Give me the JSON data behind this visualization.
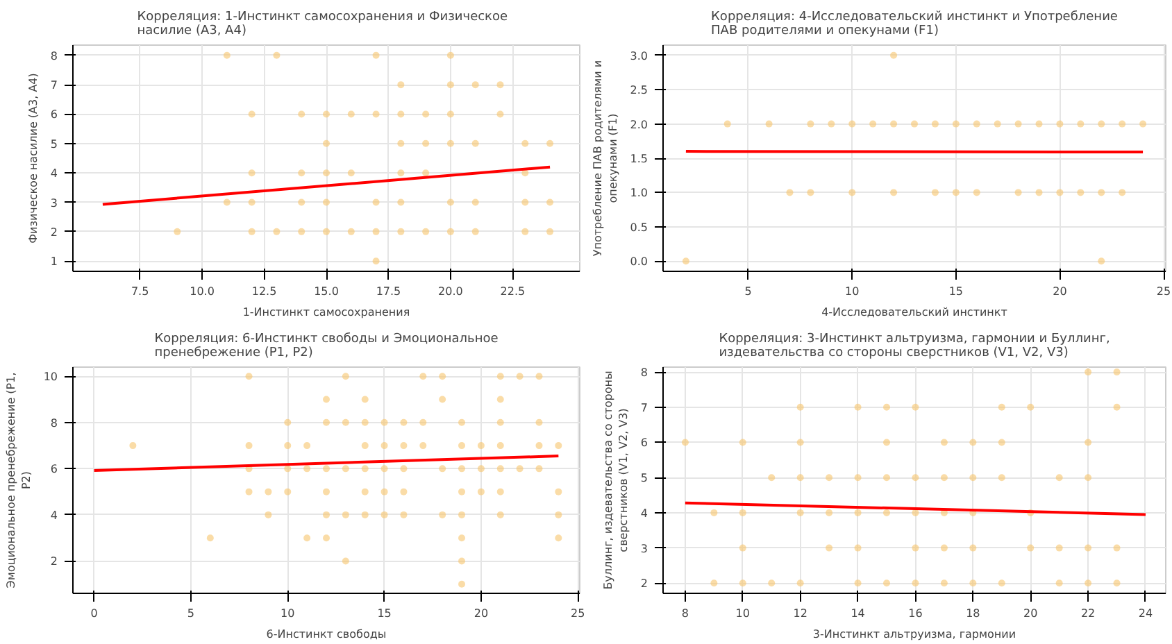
{
  "chart_data": [
    {
      "type": "scatter",
      "title": "Корреляция: 1-Инстинкт самосохранения   и Физическое насилие (А3, А4)",
      "xlabel": "1-Инстинкт самосохранения",
      "ylabel": "Физическое насилие (А3, А4)",
      "xlim": [
        4.8,
        25.2
      ],
      "ylim": [
        0.65,
        8.35
      ],
      "xticks": [
        7.5,
        {
          "value": 10,
          "label": "10.0"
        },
        12.5,
        {
          "value": 15,
          "label": "15.0"
        },
        17.5,
        {
          "value": 20,
          "label": "20.0"
        },
        22.5
      ],
      "yticks": [
        1,
        2,
        3,
        4,
        5,
        6,
        7,
        8
      ],
      "grid": true,
      "series": [
        {
          "marker": "circle",
          "color": "#f7c46c",
          "x": [
            11,
            13,
            17,
            20,
            18,
            20,
            21,
            22,
            12,
            14,
            15,
            16,
            17,
            18,
            19,
            20,
            22,
            15,
            18,
            19,
            20,
            21,
            23,
            24,
            12,
            14,
            15,
            16,
            18,
            19,
            23,
            11,
            12,
            14,
            15,
            17,
            18,
            20,
            21,
            23,
            24,
            9,
            12,
            13,
            14,
            15,
            16,
            17,
            18,
            19,
            20,
            21,
            23,
            24,
            17
          ],
          "values": [
            8,
            8,
            8,
            8,
            7,
            7,
            7,
            7,
            6,
            6,
            6,
            6,
            6,
            6,
            6,
            6,
            6,
            5,
            5,
            5,
            5,
            5,
            5,
            5,
            4,
            4,
            4,
            4,
            4,
            4,
            4,
            3,
            3,
            3,
            3,
            3,
            3,
            3,
            3,
            3,
            3,
            2,
            2,
            2,
            2,
            2,
            2,
            2,
            2,
            2,
            2,
            2,
            2,
            2,
            1
          ]
        },
        {
          "type": "line",
          "color": "#ff0000",
          "x": [
            6,
            24
          ],
          "values": [
            2.93,
            4.2
          ]
        }
      ]
    },
    {
      "type": "scatter",
      "title": "Корреляция: 4-Исследовательский инстинкт и Употребление ПАВ родителями и опекунами (F1)",
      "xlabel": "4-Исследовательский инстинкт",
      "ylabel": "Употребление ПАВ родителями и опекунами (F1)",
      "xlim": [
        0.9,
        25.1
      ],
      "ylim": [
        -0.15,
        3.15
      ],
      "xticks": [
        5,
        10,
        15,
        20,
        25
      ],
      "yticks": [
        {
          "value": 0,
          "label": "0.0"
        },
        0.5,
        {
          "value": 1,
          "label": "1.0"
        },
        1.5,
        {
          "value": 2,
          "label": "2.0"
        },
        2.5,
        {
          "value": 3,
          "label": "3.0"
        }
      ],
      "grid": true,
      "series": [
        {
          "marker": "circle",
          "color": "#f7c46c",
          "x": [
            12,
            4,
            6,
            8,
            9,
            10,
            11,
            12,
            13,
            14,
            15,
            16,
            17,
            18,
            19,
            20,
            21,
            22,
            23,
            24,
            7,
            8,
            10,
            12,
            14,
            15,
            16,
            18,
            19,
            20,
            21,
            22,
            23,
            2,
            22
          ],
          "values": [
            3,
            2,
            2,
            2,
            2,
            2,
            2,
            2,
            2,
            2,
            2,
            2,
            2,
            2,
            2,
            2,
            2,
            2,
            2,
            2,
            1,
            1,
            1,
            1,
            1,
            1,
            1,
            1,
            1,
            1,
            1,
            1,
            1,
            0,
            0
          ]
        },
        {
          "type": "line",
          "color": "#ff0000",
          "x": [
            2,
            24
          ],
          "values": [
            1.6,
            1.59
          ]
        }
      ]
    },
    {
      "type": "scatter",
      "title": "Корреляция: 6-Инстинкт свободы и Эмоциональное пренебрежение (P1, P2)",
      "xlabel": "6-Инстинкт свободы",
      "ylabel": "Эмоциональное пренебрежение (P1, P2)",
      "xlim": [
        -1.1,
        25.1
      ],
      "ylim": [
        0.6,
        10.4
      ],
      "xticks": [
        0,
        5,
        10,
        15,
        20,
        25
      ],
      "yticks": [
        2,
        4,
        6,
        8,
        10
      ],
      "grid": true,
      "series": [
        {
          "marker": "circle",
          "color": "#f7c46c",
          "x": [
            8,
            13,
            17,
            18,
            21,
            22,
            23,
            12,
            14,
            18,
            21,
            10,
            12,
            13,
            14,
            15,
            16,
            17,
            19,
            21,
            23,
            2,
            8,
            10,
            11,
            14,
            15,
            16,
            17,
            19,
            20,
            21,
            23,
            24,
            8,
            10,
            11,
            12,
            13,
            14,
            15,
            16,
            18,
            19,
            20,
            21,
            22,
            23,
            8,
            9,
            10,
            12,
            14,
            15,
            16,
            19,
            20,
            21,
            24,
            9,
            12,
            13,
            14,
            15,
            16,
            18,
            19,
            21,
            24,
            6,
            11,
            12,
            19,
            24,
            13,
            19,
            19
          ],
          "values": [
            10,
            10,
            10,
            10,
            10,
            10,
            10,
            9,
            9,
            9,
            9,
            8,
            8,
            8,
            8,
            8,
            8,
            8,
            8,
            8,
            8,
            7,
            7,
            7,
            7,
            7,
            7,
            7,
            7,
            7,
            7,
            7,
            7,
            7,
            6,
            6,
            6,
            6,
            6,
            6,
            6,
            6,
            6,
            6,
            6,
            6,
            6,
            6,
            5,
            5,
            5,
            5,
            5,
            5,
            5,
            5,
            5,
            5,
            5,
            4,
            4,
            4,
            4,
            4,
            4,
            4,
            4,
            4,
            4,
            3,
            3,
            3,
            3,
            3,
            2,
            2,
            1
          ]
        },
        {
          "type": "line",
          "color": "#ff0000",
          "x": [
            0,
            24
          ],
          "values": [
            5.92,
            6.55
          ]
        }
      ]
    },
    {
      "type": "scatter",
      "title": "Корреляция: 3-Инстинкт альтруизма, гармонии и Буллинг, издевательства со стороны сверстников (V1, V2, V3)",
      "xlabel": "3-Инстинкт альтруизма, гармонии",
      "ylabel": "Буллинг, издевательства со стороны сверстников (V1, V2, V3)",
      "xlim": [
        7.23,
        24.7
      ],
      "ylim": [
        1.71,
        8.14
      ],
      "xticks": [
        8,
        10,
        12,
        14,
        16,
        18,
        20,
        22,
        24
      ],
      "yticks": [
        2,
        3,
        4,
        5,
        6,
        7,
        8
      ],
      "grid": true,
      "series": [
        {
          "marker": "circle",
          "color": "#f7c46c",
          "x": [
            22,
            23,
            12,
            14,
            15,
            16,
            19,
            20,
            23,
            8,
            10,
            12,
            15,
            17,
            18,
            19,
            22,
            11,
            12,
            13,
            14,
            15,
            16,
            17,
            18,
            19,
            21,
            22,
            9,
            10,
            12,
            13,
            14,
            15,
            16,
            17,
            18,
            20,
            10,
            13,
            14,
            16,
            17,
            18,
            20,
            21,
            22,
            23,
            9,
            10,
            11,
            12,
            14,
            15,
            16,
            17,
            18,
            19,
            21,
            22,
            23
          ],
          "values": [
            8,
            8,
            7,
            7,
            7,
            7,
            7,
            7,
            7,
            6,
            6,
            6,
            6,
            6,
            6,
            6,
            6,
            5,
            5,
            5,
            5,
            5,
            5,
            5,
            5,
            5,
            5,
            5,
            4,
            4,
            4,
            4,
            4,
            4,
            4,
            4,
            4,
            4,
            3,
            3,
            3,
            3,
            3,
            3,
            3,
            3,
            3,
            3,
            2,
            2,
            2,
            2,
            2,
            2,
            2,
            2,
            2,
            2,
            2,
            2,
            2
          ]
        },
        {
          "type": "line",
          "color": "#ff0000",
          "x": [
            8,
            24
          ],
          "values": [
            4.28,
            3.95
          ]
        }
      ]
    }
  ]
}
